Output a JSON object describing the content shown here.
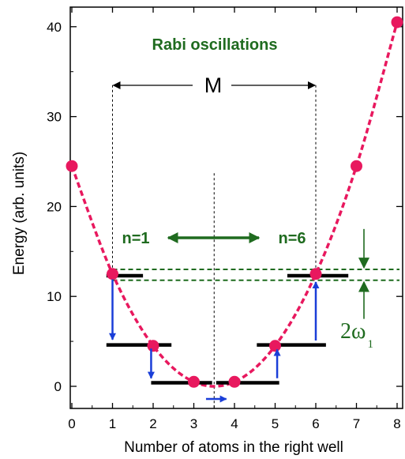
{
  "chart_data": {
    "type": "scatter",
    "title": "Rabi oscillations",
    "xlabel": "Number of atoms in the right well",
    "ylabel": "Energy (arb. units)",
    "xlim": [
      0,
      8
    ],
    "ylim": [
      -3,
      42
    ],
    "xticks": [
      "0",
      "1",
      "2",
      "3",
      "4",
      "5",
      "6",
      "7",
      "8"
    ],
    "yticks": [
      "0",
      "10",
      "20",
      "30",
      "40"
    ],
    "ytick_values": [
      0,
      10,
      20,
      30,
      40
    ],
    "series": [
      {
        "points": [
          {
            "x": 0,
            "y": 24.5
          },
          {
            "x": 1,
            "y": 12.5
          },
          {
            "x": 2,
            "y": 4.5
          },
          {
            "x": 3,
            "y": 0.5
          },
          {
            "x": 4,
            "y": 0.5
          },
          {
            "x": 5,
            "y": 4.5
          },
          {
            "x": 6,
            "y": 12.5
          },
          {
            "x": 7,
            "y": 24.5
          },
          {
            "x": 8,
            "y": 40.5
          }
        ],
        "color": "#e8185e"
      }
    ],
    "levels": [
      {
        "x1": 0.85,
        "x2": 1.75,
        "y": 12.3
      },
      {
        "x1": 0.85,
        "x2": 2.45,
        "y": 4.6
      },
      {
        "x1": 1.95,
        "x2": 3.45,
        "y": 0.4
      },
      {
        "x1": 3.55,
        "x2": 5.1,
        "y": 0.4
      },
      {
        "x1": 4.55,
        "x2": 6.25,
        "y": 4.6
      },
      {
        "x1": 5.3,
        "x2": 6.8,
        "y": 12.3
      }
    ],
    "annotations": {
      "n_left": "n=1",
      "n_right": "n=6",
      "bracket_label": "M",
      "splitting_label": "2ω",
      "splitting_subscript": "1"
    },
    "colors": {
      "curve": "#e8185e",
      "arrows": "#1a3ed8",
      "annotations": "#1f6b1f",
      "levels": "#000000"
    }
  }
}
